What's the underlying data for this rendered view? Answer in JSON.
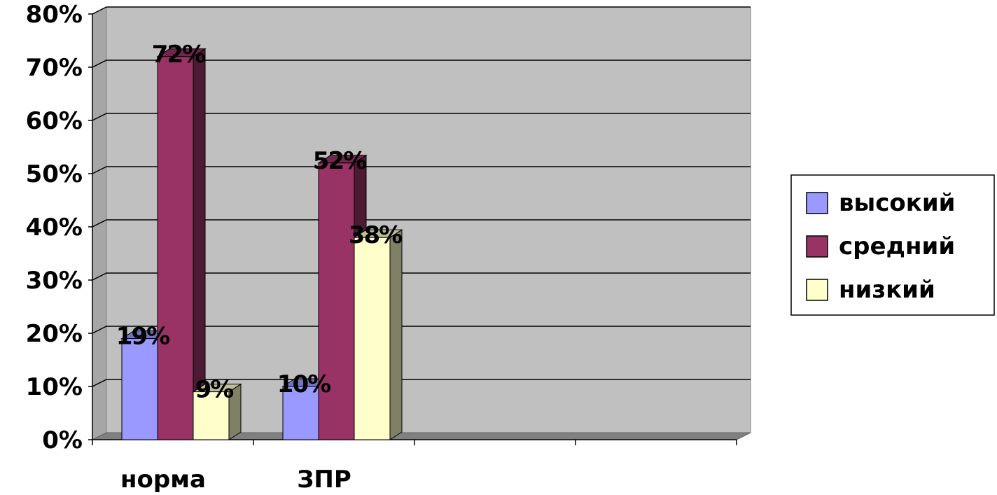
{
  "chart_data": {
    "type": "bar",
    "style": "3d-clustered-column",
    "categories": [
      "норма",
      "ЗПР",
      "",
      ""
    ],
    "series": [
      {
        "name": "высокий",
        "values": [
          19,
          10,
          null,
          null
        ],
        "labels": [
          "19%",
          "10%",
          "",
          ""
        ],
        "color": "#9999ff"
      },
      {
        "name": "средний",
        "values": [
          72,
          52,
          null,
          null
        ],
        "labels": [
          "72%",
          "52%",
          "",
          ""
        ],
        "color": "#993366"
      },
      {
        "name": "низкий",
        "values": [
          9,
          38,
          null,
          null
        ],
        "labels": [
          "9%",
          "38%",
          "",
          ""
        ],
        "color": "#ffffcc"
      }
    ],
    "yticks": [
      "0%",
      "10%",
      "20%",
      "30%",
      "40%",
      "50%",
      "60%",
      "70%",
      "80%"
    ],
    "ylim": [
      0,
      80
    ],
    "grid": true,
    "plot_background": "#c0c0c0",
    "legend_position": "right",
    "title": "",
    "xlabel": "",
    "ylabel": ""
  }
}
